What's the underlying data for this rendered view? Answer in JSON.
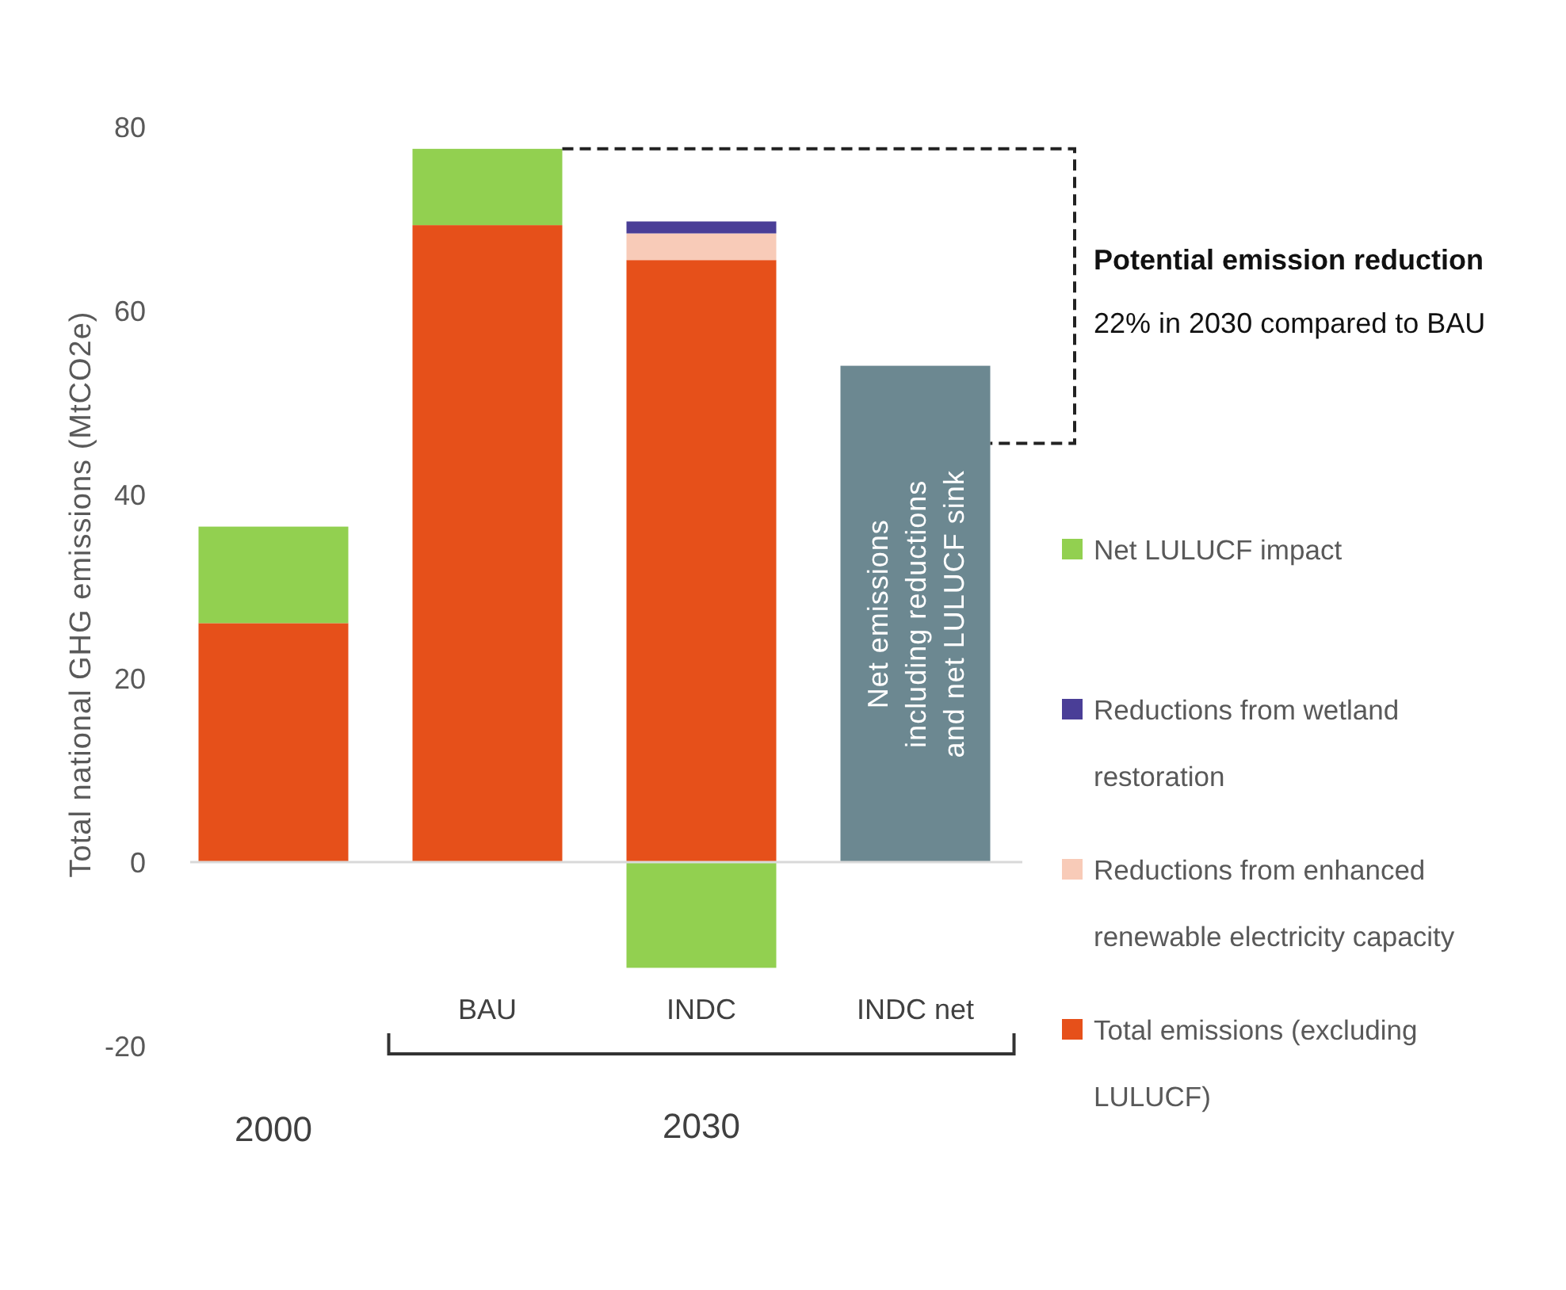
{
  "chart_data": {
    "type": "bar",
    "stacked": true,
    "categories": [
      null,
      "BAU",
      "INDC",
      "INDC net"
    ],
    "ylabel": "Total national GHG emissions  (MtCO2e)",
    "ylim": [
      -20,
      80
    ],
    "yticks": [
      -20,
      0,
      20,
      40,
      60,
      80
    ],
    "grid": false,
    "legend": "right",
    "series": [
      {
        "name": "Total emissions (excluding LULUCF)",
        "color": "#e6501a",
        "values": [
          26,
          69.3,
          65.5,
          null
        ]
      },
      {
        "name": "Reductions from enhanced renewable electricity capacity",
        "color": "#f8cbb8",
        "values": [
          null,
          null,
          2.9,
          null
        ]
      },
      {
        "name": "Reductions from wetland restoration",
        "color": "#4a3e97",
        "values": [
          null,
          null,
          1.3,
          null
        ]
      },
      {
        "name": "Net LULUCF impact",
        "color": "#92d050",
        "values": [
          10.5,
          8.3,
          -11.5,
          null
        ]
      },
      {
        "color": "#6c8891",
        "values": [
          null,
          null,
          null,
          54
        ]
      }
    ],
    "annotations": [
      "Potential emission reduction",
      "22% in 2030 compared to BAU",
      "2000",
      "2030",
      "Net emissions including reductions and net LULUCF sink"
    ],
    "ref_lines": [
      {
        "axis": "y",
        "value": 0,
        "color": "#d9d9d9"
      }
    ]
  }
}
